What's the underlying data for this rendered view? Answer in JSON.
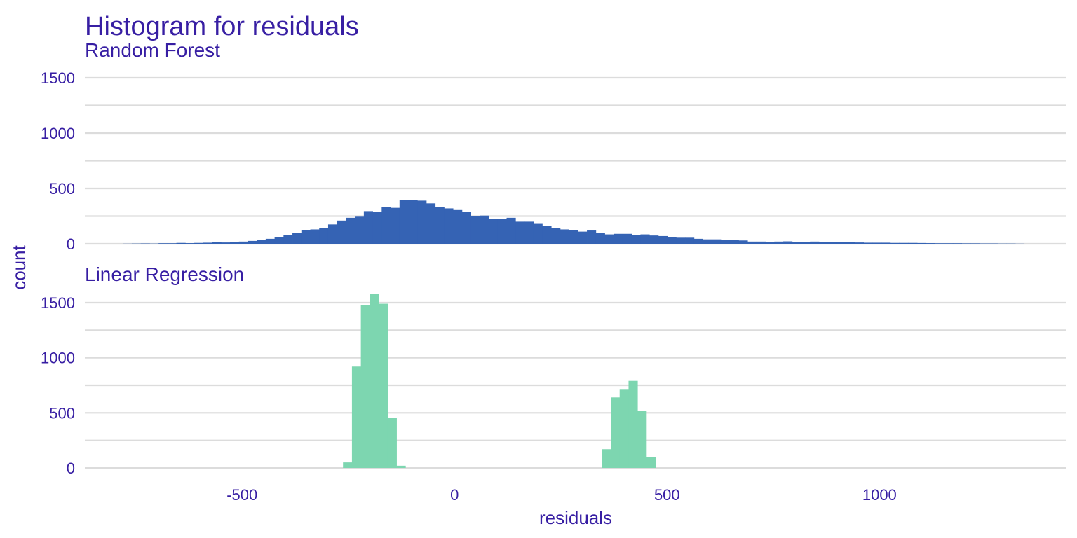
{
  "chart_data": {
    "type": "histogram",
    "title": "Histogram for residuals",
    "subtitle": "Random Forest",
    "xlabel": "residuals",
    "ylabel": "count",
    "xlim": [
      -870,
      1440
    ],
    "x_ticks": [
      -500,
      0,
      500,
      1000
    ],
    "x_tick_labels": [
      "-500",
      "0",
      "500",
      "1000"
    ],
    "y_ticks": [
      0,
      500,
      1000,
      1500
    ],
    "y_tick_labels": [
      "0",
      "500",
      "1000",
      "1500"
    ],
    "ylim": [
      0,
      1500
    ],
    "grid": true,
    "bin_width": 21,
    "panels": [
      {
        "name": "Random Forest",
        "color": "#3563b4",
        "x": [
          -770,
          -749,
          -728,
          -707,
          -686,
          -665,
          -644,
          -623,
          -602,
          -581,
          -560,
          -539,
          -518,
          -497,
          -476,
          -455,
          -434,
          -413,
          -392,
          -371,
          -350,
          -329,
          -308,
          -287,
          -266,
          -245,
          -224,
          -203,
          -182,
          -161,
          -140,
          -119,
          -98,
          -77,
          -56,
          -35,
          -14,
          7,
          28,
          49,
          70,
          91,
          112,
          133,
          154,
          175,
          196,
          217,
          238,
          259,
          280,
          301,
          322,
          343,
          364,
          385,
          406,
          427,
          448,
          469,
          490,
          511,
          532,
          553,
          574,
          595,
          616,
          637,
          658,
          679,
          700,
          721,
          742,
          763,
          784,
          805,
          826,
          847,
          868,
          889,
          910,
          931,
          952,
          973,
          994,
          1015,
          1036,
          1057,
          1078,
          1099,
          1120,
          1141,
          1162,
          1183,
          1204,
          1225,
          1246,
          1267,
          1288,
          1309,
          1330
        ],
        "values": [
          1,
          2,
          3,
          2,
          5,
          5,
          8,
          6,
          8,
          10,
          14,
          12,
          15,
          20,
          26,
          32,
          45,
          60,
          80,
          100,
          125,
          130,
          145,
          175,
          210,
          235,
          245,
          295,
          290,
          335,
          325,
          395,
          395,
          390,
          365,
          335,
          320,
          305,
          290,
          250,
          255,
          225,
          225,
          235,
          200,
          200,
          180,
          160,
          140,
          130,
          125,
          110,
          120,
          100,
          85,
          90,
          90,
          80,
          85,
          75,
          70,
          60,
          55,
          55,
          45,
          40,
          40,
          35,
          35,
          30,
          20,
          20,
          18,
          20,
          22,
          18,
          15,
          20,
          18,
          15,
          14,
          15,
          12,
          10,
          10,
          10,
          8,
          8,
          8,
          7,
          6,
          5,
          5,
          5,
          4,
          4,
          3,
          3,
          2,
          2,
          1
        ]
      },
      {
        "name": "Linear Regression",
        "color": "#7dd6b0",
        "x": [
          -252,
          -231,
          -210,
          -189,
          -168,
          -147,
          -126,
          357,
          378,
          399,
          420,
          441,
          462
        ],
        "values": [
          50,
          920,
          1480,
          1580,
          1490,
          455,
          20,
          170,
          640,
          710,
          790,
          520,
          100
        ]
      }
    ]
  }
}
